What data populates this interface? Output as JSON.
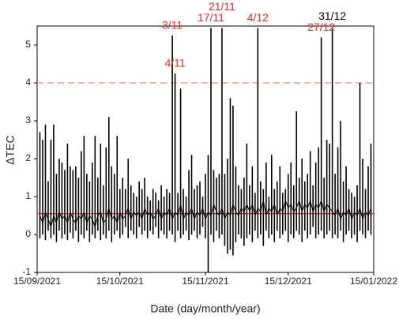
{
  "chart_data": {
    "type": "range",
    "x_label": "Date (day/month/year)",
    "y_label": "ΔTEC",
    "x": [
      "2021-09-16",
      "2021-09-17",
      "2021-09-18",
      "2021-09-19",
      "2021-09-20",
      "2021-09-21",
      "2021-09-22",
      "2021-09-23",
      "2021-09-24",
      "2021-09-25",
      "2021-09-26",
      "2021-09-27",
      "2021-09-28",
      "2021-09-29",
      "2021-09-30",
      "2021-10-01",
      "2021-10-02",
      "2021-10-03",
      "2021-10-04",
      "2021-10-05",
      "2021-10-06",
      "2021-10-07",
      "2021-10-08",
      "2021-10-09",
      "2021-10-10",
      "2021-10-11",
      "2021-10-12",
      "2021-10-13",
      "2021-10-14",
      "2021-10-15",
      "2021-10-16",
      "2021-10-17",
      "2021-10-18",
      "2021-10-19",
      "2021-10-20",
      "2021-10-21",
      "2021-10-22",
      "2021-10-23",
      "2021-10-24",
      "2021-10-25",
      "2021-10-26",
      "2021-10-27",
      "2021-10-28",
      "2021-10-29",
      "2021-10-30",
      "2021-10-31",
      "2021-11-01",
      "2021-11-02",
      "2021-11-03",
      "2021-11-04",
      "2021-11-05",
      "2021-11-06",
      "2021-11-07",
      "2021-11-08",
      "2021-11-09",
      "2021-11-10",
      "2021-11-11",
      "2021-11-12",
      "2021-11-13",
      "2021-11-14",
      "2021-11-15",
      "2021-11-16",
      "2021-11-17",
      "2021-11-18",
      "2021-11-19",
      "2021-11-20",
      "2021-11-21",
      "2021-11-22",
      "2021-11-23",
      "2021-11-24",
      "2021-11-25",
      "2021-11-26",
      "2021-11-27",
      "2021-11-28",
      "2021-11-29",
      "2021-11-30",
      "2021-12-01",
      "2021-12-02",
      "2021-12-03",
      "2021-12-04",
      "2021-12-05",
      "2021-12-06",
      "2021-12-07",
      "2021-12-08",
      "2021-12-09",
      "2021-12-10",
      "2021-12-11",
      "2021-12-12",
      "2021-12-13",
      "2021-12-14",
      "2021-12-15",
      "2021-12-16",
      "2021-12-17",
      "2021-12-18",
      "2021-12-19",
      "2021-12-20",
      "2021-12-21",
      "2021-12-22",
      "2021-12-23",
      "2021-12-24",
      "2021-12-25",
      "2021-12-26",
      "2021-12-27",
      "2021-12-28",
      "2021-12-29",
      "2021-12-30",
      "2021-12-31",
      "2022-01-01",
      "2022-01-02",
      "2022-01-03",
      "2022-01-04",
      "2022-01-05",
      "2022-01-06",
      "2022-01-07",
      "2022-01-08",
      "2022-01-09",
      "2022-01-10",
      "2022-01-11",
      "2022-01-12",
      "2022-01-13",
      "2022-01-14"
    ],
    "high": [
      2.7,
      2.5,
      2.9,
      1.4,
      2.5,
      2.9,
      1.6,
      2.0,
      1.9,
      1.7,
      2.4,
      1.8,
      1.7,
      1.8,
      1.5,
      2.2,
      2.6,
      1.6,
      1.4,
      1.9,
      2.6,
      1.5,
      2.4,
      1.3,
      2.3,
      3.1,
      1.8,
      1.6,
      2.6,
      1.2,
      1.5,
      1.2,
      2.0,
      1.3,
      1.1,
      1.0,
      1.4,
      1.2,
      1.5,
      1.0,
      0.9,
      1.2,
      1.1,
      0.9,
      1.3,
      1.0,
      1.2,
      1.1,
      5.25,
      4.25,
      1.1,
      3.85,
      1.2,
      1.0,
      1.7,
      2.1,
      1.2,
      1.3,
      1.4,
      1.0,
      1.6,
      2.1,
      5.45,
      1.7,
      1.5,
      1.6,
      5.45,
      1.6,
      2.0,
      3.6,
      3.4,
      1.8,
      1.3,
      1.2,
      1.5,
      2.4,
      1.3,
      1.8,
      1.1,
      5.45,
      1.4,
      1.2,
      1.9,
      1.0,
      2.1,
      1.2,
      1.4,
      1.8,
      1.1,
      1.2,
      1.6,
      1.9,
      1.3,
      3.25,
      1.5,
      2.0,
      1.4,
      1.6,
      2.2,
      1.3,
      1.9,
      2.3,
      5.2,
      1.5,
      2.5,
      2.4,
      5.45,
      1.6,
      2.3,
      3.0,
      1.4,
      1.8,
      1.2,
      1.1,
      1.0,
      1.3,
      4.0,
      2.0,
      1.2,
      1.8,
      2.4
    ],
    "low": [
      -0.1,
      0.0,
      -0.15,
      0.1,
      -0.1,
      0.0,
      -0.2,
      0.1,
      -0.1,
      0.0,
      -0.15,
      0.05,
      -0.1,
      0.1,
      -0.2,
      0.0,
      -0.1,
      0.1,
      -0.2,
      0.0,
      -0.1,
      0.1,
      -0.15,
      0.0,
      -0.1,
      0.1,
      -0.2,
      0.0,
      0.1,
      -0.1,
      0.0,
      0.2,
      -0.1,
      0.1,
      0.0,
      -0.1,
      0.2,
      0.0,
      0.1,
      -0.1,
      0.1,
      0.0,
      0.2,
      -0.1,
      0.1,
      0.0,
      -0.1,
      0.1,
      0.0,
      -0.2,
      0.1,
      -0.1,
      0.0,
      0.1,
      -0.15,
      0.0,
      0.1,
      -0.1,
      0.0,
      0.2,
      -0.1,
      -1.0,
      0.0,
      -0.2,
      0.1,
      -0.1,
      0.0,
      -0.3,
      -0.5,
      -0.4,
      -0.55,
      -0.2,
      0.0,
      -0.1,
      -0.3,
      -0.1,
      0.0,
      -0.2,
      0.1,
      -0.1,
      0.0,
      -0.3,
      0.1,
      -0.1,
      0.0,
      -0.2,
      0.1,
      -0.1,
      0.0,
      0.1,
      -0.2,
      0.0,
      -0.1,
      0.1,
      0.0,
      -0.2,
      0.1,
      -0.1,
      0.0,
      0.2,
      -0.1,
      0.0,
      0.1,
      -0.1,
      0.0,
      0.1,
      -0.1,
      0.0,
      -0.1,
      0.1,
      -0.2,
      0.0,
      0.1,
      -0.1,
      0.0,
      -0.2,
      0.1,
      0.0,
      -0.1,
      0.1,
      0.0
    ],
    "values": [
      0.5,
      0.3,
      0.6,
      0.4,
      0.2,
      0.5,
      0.3,
      0.6,
      0.4,
      0.5,
      0.3,
      0.6,
      0.4,
      0.3,
      0.5,
      0.4,
      0.6,
      0.3,
      0.5,
      0.4,
      0.2,
      0.5,
      0.6,
      0.3,
      0.4,
      0.7,
      0.4,
      0.5,
      0.3,
      0.6,
      0.4,
      0.5,
      0.7,
      0.4,
      0.6,
      0.5,
      0.6,
      0.4,
      0.7,
      0.5,
      0.6,
      0.4,
      0.5,
      0.7,
      0.4,
      0.6,
      0.5,
      0.7,
      0.4,
      0.6,
      0.5,
      0.8,
      0.4,
      0.6,
      0.5,
      0.7,
      0.4,
      0.6,
      0.5,
      0.7,
      0.4,
      0.6,
      0.5,
      0.8,
      0.6,
      0.5,
      0.7,
      0.4,
      0.6,
      0.5,
      0.8,
      0.6,
      0.5,
      0.7,
      0.6,
      0.8,
      0.6,
      0.8,
      0.5,
      0.7,
      0.6,
      0.9,
      0.5,
      0.7,
      0.6,
      0.8,
      0.5,
      0.7,
      0.6,
      0.9,
      0.7,
      0.8,
      0.6,
      0.7,
      0.9,
      0.6,
      0.8,
      0.7,
      0.9,
      0.6,
      0.8,
      0.7,
      0.9,
      0.6,
      0.8,
      0.7,
      0.6,
      0.5,
      0.7,
      0.4,
      0.6,
      0.5,
      0.7,
      0.4,
      0.6,
      0.5,
      0.7,
      0.4,
      0.6,
      0.5,
      0.7
    ],
    "color": "#000000",
    "xlim": [
      "2021-09-15",
      "2022-01-15"
    ],
    "xticks": [
      {
        "value": "2021-09-15",
        "label": "15/09/2021"
      },
      {
        "value": "2021-10-15",
        "label": "15/10/2021"
      },
      {
        "value": "2021-11-15",
        "label": "15/11/2021"
      },
      {
        "value": "2021-12-15",
        "label": "15/12/2021"
      },
      {
        "value": "2022-01-15",
        "label": "15/01/2022"
      }
    ],
    "ylim": [
      -1,
      5.5
    ],
    "yticks": [
      -1,
      0,
      1,
      2,
      3,
      4,
      5
    ],
    "hlines": [
      {
        "value": 4,
        "color": "#f08a80",
        "dash": true
      },
      {
        "value": 0.55,
        "color": "#e8302a",
        "dash": false
      }
    ],
    "annotations": [
      {
        "text": "3/11",
        "date": "2021-11-03",
        "color": "#e8302a"
      },
      {
        "text": "4/11",
        "date": "2021-11-04",
        "color": "#e8302a"
      },
      {
        "text": "17/11",
        "date": "2021-11-17",
        "color": "#e8302a"
      },
      {
        "text": "21/11",
        "date": "2021-11-21",
        "color": "#e8302a"
      },
      {
        "text": "4/12",
        "date": "2021-12-04",
        "color": "#e8302a"
      },
      {
        "text": "27/12",
        "date": "2021-12-27",
        "color": "#e8302a"
      },
      {
        "text": "31/12",
        "date": "2021-12-31",
        "color": "#000000"
      }
    ]
  }
}
